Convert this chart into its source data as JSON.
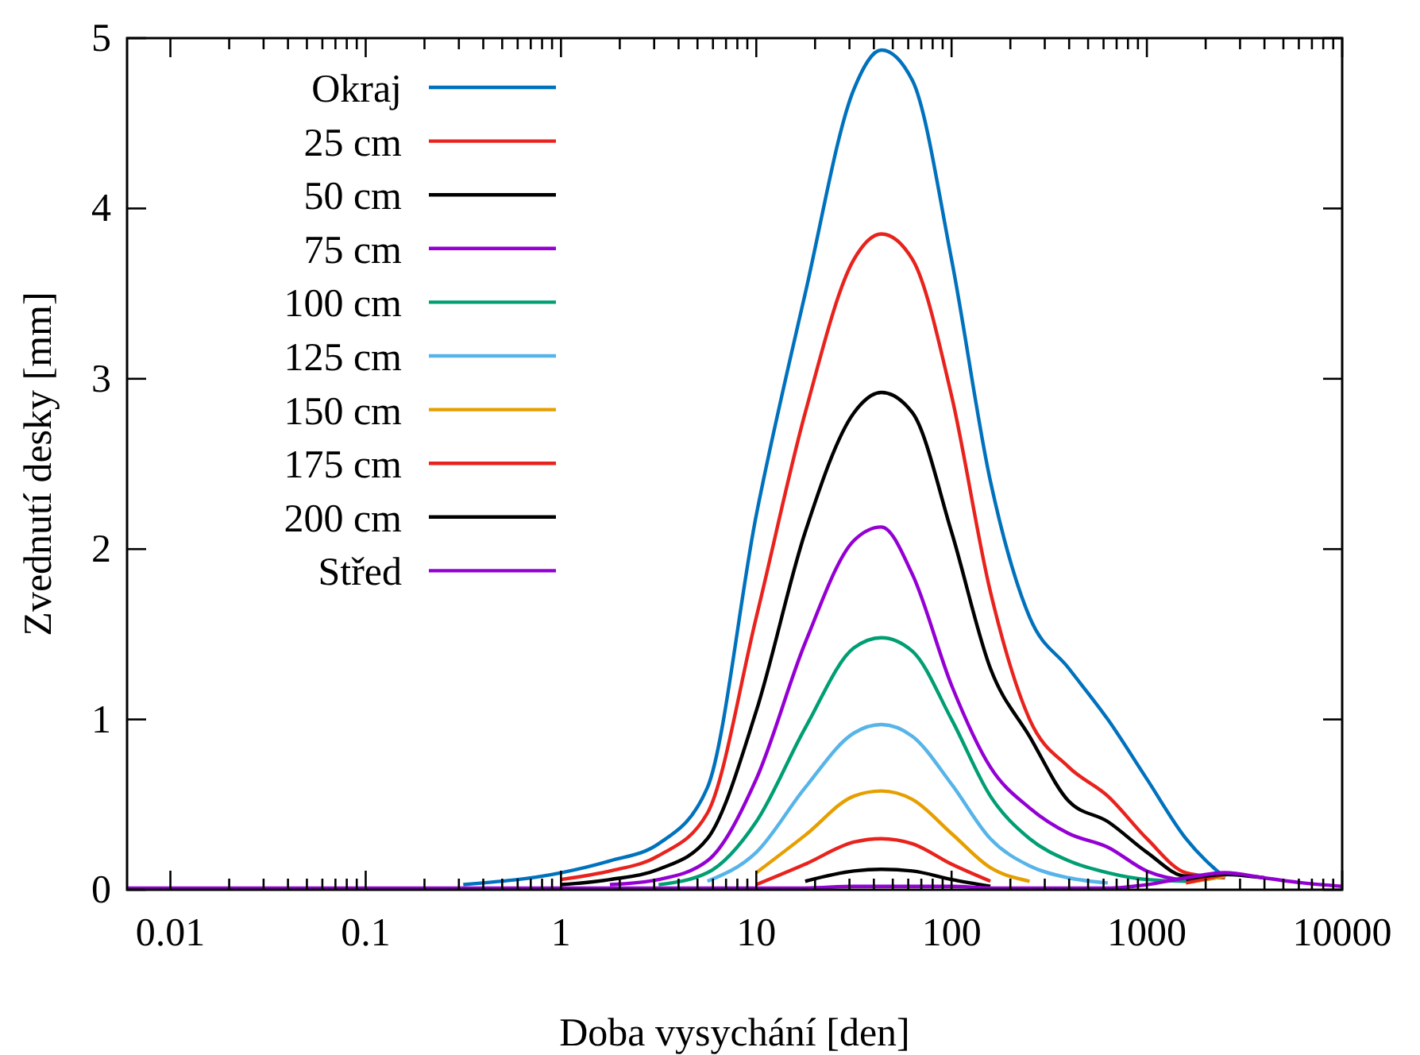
{
  "chart_data": {
    "type": "line",
    "xlabel": "Doba vysychání [den]",
    "ylabel": "Zvednutí desky [mm]",
    "log": "x",
    "xlim": [
      0.006,
      10000
    ],
    "ylim": [
      0,
      5
    ],
    "xticks": [
      0.01,
      {
        "value": 0.02,
        "label": null
      },
      {
        "value": 0.03,
        "label": null
      },
      {
        "value": 0.04,
        "label": null
      },
      {
        "value": 0.05,
        "label": null
      },
      {
        "value": 0.06,
        "label": null
      },
      {
        "value": 0.07,
        "label": null
      },
      {
        "value": 0.08,
        "label": null
      },
      {
        "value": 0.09,
        "label": null
      },
      0.1,
      {
        "value": 0.2,
        "label": null
      },
      {
        "value": 0.3,
        "label": null
      },
      {
        "value": 0.4,
        "label": null
      },
      {
        "value": 0.5,
        "label": null
      },
      {
        "value": 0.6,
        "label": null
      },
      {
        "value": 0.7,
        "label": null
      },
      {
        "value": 0.8,
        "label": null
      },
      {
        "value": 0.9,
        "label": null
      },
      1,
      {
        "value": 2,
        "label": null
      },
      {
        "value": 3,
        "label": null
      },
      {
        "value": 4,
        "label": null
      },
      {
        "value": 5,
        "label": null
      },
      {
        "value": 6,
        "label": null
      },
      {
        "value": 7,
        "label": null
      },
      {
        "value": 8,
        "label": null
      },
      {
        "value": 9,
        "label": null
      },
      10,
      {
        "value": 20,
        "label": null
      },
      {
        "value": 30,
        "label": null
      },
      {
        "value": 40,
        "label": null
      },
      {
        "value": 50,
        "label": null
      },
      {
        "value": 60,
        "label": null
      },
      {
        "value": 70,
        "label": null
      },
      {
        "value": 80,
        "label": null
      },
      {
        "value": 90,
        "label": null
      },
      100,
      {
        "value": 200,
        "label": null
      },
      {
        "value": 300,
        "label": null
      },
      {
        "value": 400,
        "label": null
      },
      {
        "value": 500,
        "label": null
      },
      {
        "value": 600,
        "label": null
      },
      {
        "value": 700,
        "label": null
      },
      {
        "value": 800,
        "label": null
      },
      {
        "value": 900,
        "label": null
      },
      1000,
      {
        "value": 2000,
        "label": null
      },
      {
        "value": 3000,
        "label": null
      },
      {
        "value": 4000,
        "label": null
      },
      {
        "value": 5000,
        "label": null
      },
      {
        "value": 6000,
        "label": null
      },
      {
        "value": 7000,
        "label": null
      },
      {
        "value": 8000,
        "label": null
      },
      {
        "value": 9000,
        "label": null
      },
      10000
    ],
    "yticks": [
      0,
      1,
      2,
      3,
      4,
      5
    ],
    "grid": false,
    "legend": "top left",
    "marker": "none",
    "line_style": "solid",
    "x": [
      0.006,
      0.1,
      0.316,
      1,
      1.78,
      3.16,
      5.62,
      10,
      17.8,
      31.6,
      43.7,
      63.1,
      100,
      158,
      251,
      398,
      631,
      1000,
      1585,
      2512,
      3981,
      6310,
      10000
    ],
    "series": [
      {
        "name": "Okraj",
        "color": "#0072bd",
        "values": [
          null,
          null,
          0.03,
          0.1,
          0.17,
          0.27,
          0.6,
          2.2,
          3.5,
          4.7,
          4.93,
          4.75,
          3.7,
          2.4,
          1.6,
          1.3,
          1.0,
          0.65,
          0.3,
          0.07,
          null,
          null,
          null
        ]
      },
      {
        "name": "25 cm",
        "color": "#e8231d",
        "values": [
          null,
          null,
          null,
          0.06,
          0.11,
          0.2,
          0.45,
          1.6,
          2.8,
          3.7,
          3.85,
          3.7,
          2.9,
          1.75,
          1.0,
          0.72,
          0.55,
          0.3,
          0.1,
          0.07,
          null,
          null,
          null
        ]
      },
      {
        "name": "50 cm",
        "color": "#000000",
        "values": [
          null,
          null,
          null,
          0.03,
          0.06,
          0.12,
          0.3,
          1.05,
          2.1,
          2.8,
          2.92,
          2.8,
          2.1,
          1.3,
          0.9,
          0.52,
          0.4,
          0.22,
          0.08,
          0.08,
          null,
          null,
          null
        ]
      },
      {
        "name": "75 cm",
        "color": "#9400d3",
        "values": [
          null,
          null,
          null,
          null,
          0.03,
          0.06,
          0.17,
          0.65,
          1.45,
          2.05,
          2.13,
          1.85,
          1.2,
          0.72,
          0.48,
          0.33,
          0.25,
          0.11,
          0.06,
          0.08,
          null,
          null,
          null
        ]
      },
      {
        "name": "100 cm",
        "color": "#009e73",
        "values": [
          null,
          null,
          null,
          null,
          null,
          0.03,
          0.1,
          0.4,
          0.95,
          1.42,
          1.48,
          1.4,
          1.0,
          0.55,
          0.3,
          0.17,
          0.1,
          0.06,
          0.05,
          0.08,
          null,
          null,
          null
        ]
      },
      {
        "name": "125 cm",
        "color": "#56b4e9",
        "values": [
          null,
          null,
          null,
          null,
          null,
          null,
          0.05,
          0.22,
          0.6,
          0.92,
          0.97,
          0.9,
          0.62,
          0.3,
          0.14,
          0.07,
          0.04,
          null,
          0.05,
          0.08,
          null,
          null,
          null
        ]
      },
      {
        "name": "150 cm",
        "color": "#e69f00",
        "values": [
          null,
          null,
          null,
          null,
          null,
          null,
          null,
          0.1,
          0.32,
          0.55,
          0.58,
          0.53,
          0.33,
          0.13,
          0.05,
          null,
          null,
          null,
          0.04,
          0.08,
          null,
          null,
          null
        ]
      },
      {
        "name": "175 cm",
        "color": "#e8231d",
        "values": [
          null,
          null,
          null,
          null,
          null,
          null,
          null,
          0.03,
          0.15,
          0.28,
          0.3,
          0.27,
          0.15,
          0.05,
          null,
          null,
          null,
          null,
          0.04,
          0.09,
          null,
          null,
          null
        ]
      },
      {
        "name": "200 cm",
        "color": "#000000",
        "values": [
          null,
          null,
          null,
          null,
          null,
          null,
          null,
          null,
          0.05,
          0.11,
          0.12,
          0.11,
          0.06,
          0.02,
          null,
          null,
          null,
          null,
          0.06,
          0.09,
          0.07,
          null,
          null
        ]
      },
      {
        "name": "Střed",
        "color": "#9400d3",
        "values": [
          0.01,
          0.01,
          0.01,
          0.01,
          0.01,
          0.01,
          0.01,
          0.01,
          0.01,
          0.02,
          0.02,
          0.02,
          0.02,
          0.01,
          0.01,
          0.01,
          0.01,
          0.03,
          0.07,
          0.1,
          0.07,
          0.04,
          0.02
        ]
      }
    ]
  }
}
